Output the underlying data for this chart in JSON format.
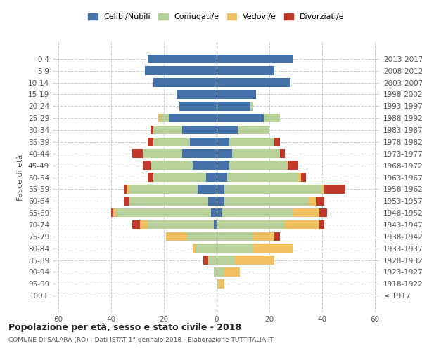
{
  "age_groups": [
    "100+",
    "95-99",
    "90-94",
    "85-89",
    "80-84",
    "75-79",
    "70-74",
    "65-69",
    "60-64",
    "55-59",
    "50-54",
    "45-49",
    "40-44",
    "35-39",
    "30-34",
    "25-29",
    "20-24",
    "15-19",
    "10-14",
    "5-9",
    "0-4"
  ],
  "birth_years": [
    "≤ 1917",
    "1918-1922",
    "1923-1927",
    "1928-1932",
    "1933-1937",
    "1938-1942",
    "1943-1947",
    "1948-1952",
    "1953-1957",
    "1958-1962",
    "1963-1967",
    "1968-1972",
    "1973-1977",
    "1978-1982",
    "1983-1987",
    "1988-1992",
    "1993-1997",
    "1998-2002",
    "2003-2007",
    "2008-2012",
    "2013-2017"
  ],
  "males": {
    "celibi": [
      0,
      0,
      0,
      0,
      0,
      0,
      1,
      2,
      3,
      7,
      4,
      9,
      13,
      10,
      13,
      18,
      14,
      15,
      24,
      27,
      26
    ],
    "coniugati": [
      0,
      0,
      1,
      3,
      8,
      11,
      25,
      36,
      30,
      26,
      20,
      16,
      15,
      14,
      11,
      3,
      0,
      0,
      0,
      0,
      0
    ],
    "vedovi": [
      0,
      0,
      0,
      0,
      1,
      8,
      3,
      1,
      0,
      1,
      0,
      0,
      0,
      0,
      0,
      1,
      0,
      0,
      0,
      0,
      0
    ],
    "divorziati": [
      0,
      0,
      0,
      2,
      0,
      0,
      3,
      1,
      2,
      1,
      2,
      3,
      4,
      2,
      1,
      0,
      0,
      0,
      0,
      0,
      0
    ]
  },
  "females": {
    "nubili": [
      0,
      0,
      0,
      0,
      0,
      0,
      0,
      2,
      3,
      3,
      4,
      5,
      6,
      5,
      8,
      18,
      13,
      15,
      28,
      22,
      29
    ],
    "coniugate": [
      0,
      1,
      3,
      7,
      14,
      14,
      26,
      27,
      32,
      37,
      27,
      22,
      18,
      17,
      12,
      6,
      1,
      0,
      0,
      0,
      0
    ],
    "vedove": [
      0,
      2,
      6,
      15,
      15,
      8,
      13,
      10,
      3,
      1,
      1,
      0,
      0,
      0,
      0,
      0,
      0,
      0,
      0,
      0,
      0
    ],
    "divorziate": [
      0,
      0,
      0,
      0,
      0,
      2,
      2,
      3,
      3,
      8,
      2,
      4,
      2,
      2,
      0,
      0,
      0,
      0,
      0,
      0,
      0
    ]
  },
  "colors": {
    "celibi": "#4472a8",
    "coniugati": "#b8d09a",
    "vedovi": "#f0c060",
    "divorziati": "#c0392b"
  },
  "legend_labels": [
    "Celibi/Nubili",
    "Coniugati/e",
    "Vedovi/e",
    "Divorziati/e"
  ],
  "xlim": 62,
  "title": "Popolazione per età, sesso e stato civile - 2018",
  "subtitle": "COMUNE DI SALARA (RO) - Dati ISTAT 1° gennaio 2018 - Elaborazione TUTTITALIA.IT",
  "ylabel": "Fasce di età"
}
